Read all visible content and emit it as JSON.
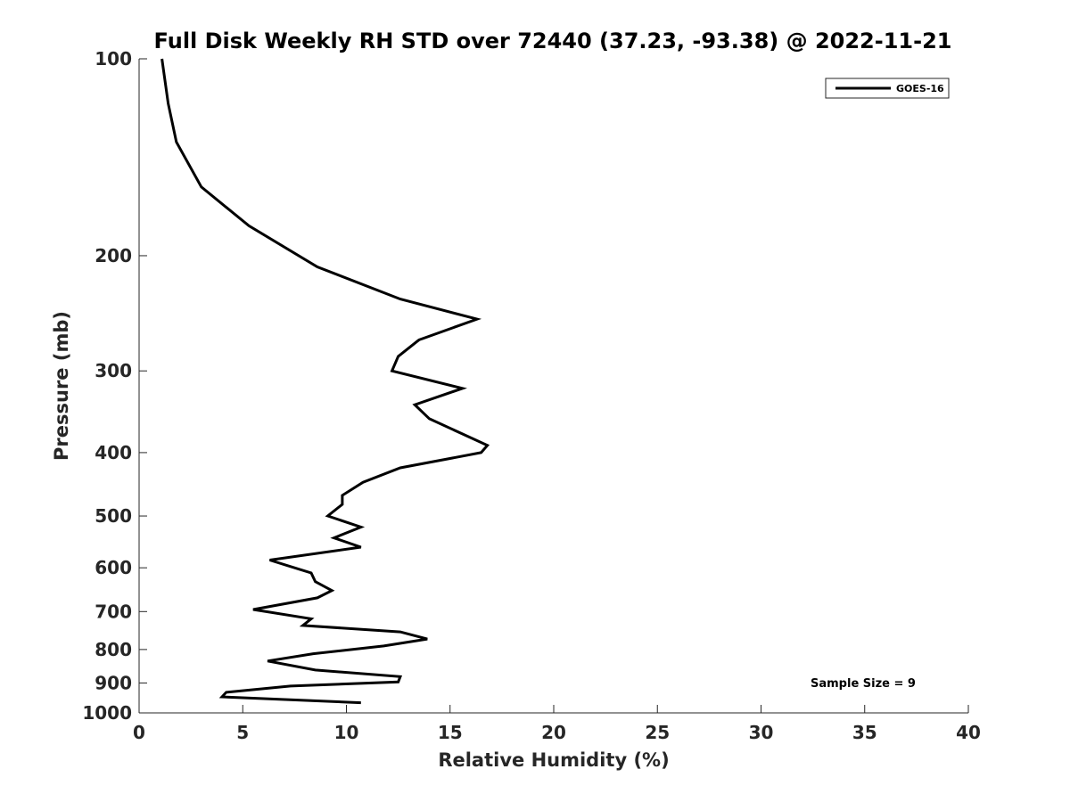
{
  "chart_data": {
    "type": "line",
    "title": "Full Disk Weekly RH STD over 72440 (37.23, -93.38) @ 2022-11-21",
    "xlabel": "Relative Humidity (%)",
    "ylabel": "Pressure (mb)",
    "xlim": [
      0,
      40
    ],
    "ylim": [
      100,
      1000
    ],
    "y_scale": "log",
    "y_reversed": true,
    "grid": false,
    "legend_position": "top-right",
    "x_ticks": [
      "0",
      "5",
      "10",
      "15",
      "20",
      "25",
      "30",
      "35",
      "40"
    ],
    "y_ticks": [
      "100",
      "200",
      "300",
      "400",
      "500",
      "600",
      "700",
      "800",
      "900",
      "1000"
    ],
    "annotation": "Sample Size = 9",
    "series": [
      {
        "name": "GOES-16",
        "color": "#000000",
        "points": [
          [
            1.1,
            100
          ],
          [
            1.4,
            117
          ],
          [
            1.8,
            134
          ],
          [
            3.0,
            157
          ],
          [
            5.3,
            180
          ],
          [
            8.6,
            208
          ],
          [
            12.6,
            233
          ],
          [
            16.3,
            250
          ],
          [
            13.5,
            269
          ],
          [
            12.5,
            285
          ],
          [
            12.2,
            300
          ],
          [
            15.6,
            319
          ],
          [
            13.3,
            338
          ],
          [
            14.0,
            355
          ],
          [
            16.8,
            390
          ],
          [
            16.5,
            400
          ],
          [
            12.6,
            422
          ],
          [
            10.8,
            444
          ],
          [
            9.8,
            465
          ],
          [
            9.8,
            480
          ],
          [
            9.1,
            500
          ],
          [
            10.7,
            520
          ],
          [
            9.4,
            540
          ],
          [
            10.7,
            558
          ],
          [
            6.3,
            584
          ],
          [
            8.3,
            611
          ],
          [
            8.5,
            630
          ],
          [
            9.3,
            650
          ],
          [
            8.6,
            667
          ],
          [
            5.5,
            695
          ],
          [
            8.3,
            718
          ],
          [
            7.9,
            735
          ],
          [
            12.6,
            752
          ],
          [
            13.9,
            771
          ],
          [
            11.8,
            790
          ],
          [
            8.4,
            812
          ],
          [
            6.2,
            833
          ],
          [
            8.5,
            860
          ],
          [
            12.6,
            880
          ],
          [
            12.5,
            897
          ],
          [
            7.3,
            910
          ],
          [
            4.2,
            930
          ],
          [
            4.0,
            945
          ],
          [
            10.7,
            965
          ]
        ]
      }
    ]
  }
}
